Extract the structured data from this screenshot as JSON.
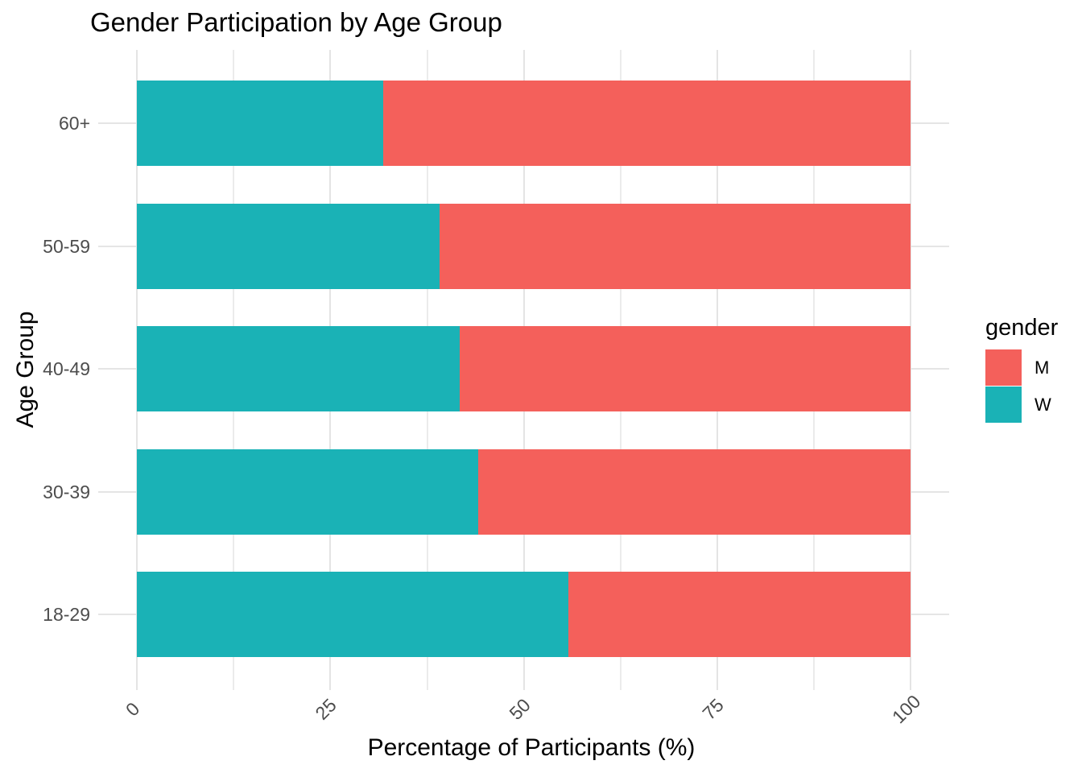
{
  "title": "Gender Participation by Age Group",
  "x_axis": {
    "title": "Percentage of Participants (%)",
    "tick_labels": [
      "0",
      "25",
      "50",
      "75",
      "100"
    ]
  },
  "y_axis": {
    "title": "Age Group",
    "tick_labels": [
      "60+",
      "50-59",
      "40-49",
      "30-39",
      "18-29"
    ]
  },
  "legend": {
    "title": "gender",
    "items": [
      {
        "label": "M",
        "color": "#F4605B"
      },
      {
        "label": "W",
        "color": "#1AB2B6"
      }
    ]
  },
  "chart_data": {
    "type": "bar",
    "orientation": "horizontal",
    "stacked": true,
    "title": "Gender Participation by Age Group",
    "xlabel": "Percentage of Participants (%)",
    "ylabel": "Age Group",
    "categories": [
      "60+",
      "50-59",
      "40-49",
      "30-39",
      "18-29"
    ],
    "series": [
      {
        "name": "W",
        "color": "#1AB2B6",
        "values": [
          31.8,
          39.1,
          41.7,
          44.1,
          55.8
        ]
      },
      {
        "name": "M",
        "color": "#F4605B",
        "values": [
          68.2,
          60.9,
          58.3,
          55.9,
          44.2
        ]
      }
    ],
    "xlim": [
      0,
      100
    ],
    "x_major_ticks": [
      0,
      25,
      50,
      75,
      100
    ],
    "x_minor_ticks": [
      12.5,
      37.5,
      62.5,
      87.5
    ],
    "grid": true,
    "legend_position": "right",
    "legend_title": "gender"
  }
}
